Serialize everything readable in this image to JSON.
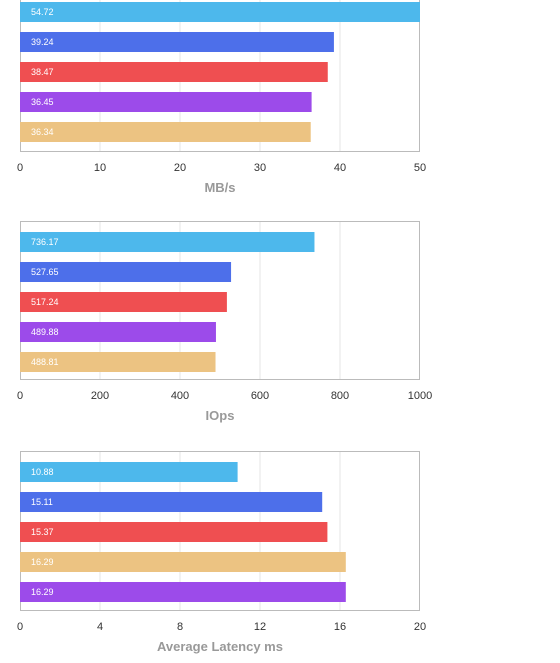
{
  "palette": {
    "sky": "#4DB8EC",
    "blue": "#4D6FEA",
    "red": "#EF4F51",
    "purple": "#9C4BEA",
    "tan": "#ECC382",
    "grid": "#E6E6E6",
    "frame": "#BBBBBB"
  },
  "chart_data": [
    {
      "type": "bar",
      "orientation": "horizontal",
      "xlabel": "MB/s",
      "xlim": [
        0,
        50
      ],
      "xticks": [
        0,
        10,
        20,
        30,
        40,
        50
      ],
      "grid": true,
      "values": [
        54.72,
        39.24,
        38.47,
        36.45,
        36.34
      ],
      "labels": [
        "54.72",
        "39.24",
        "38.47",
        "36.45",
        "36.34"
      ],
      "colors": [
        "#4DB8EC",
        "#4D6FEA",
        "#EF4F51",
        "#9C4BEA",
        "#ECC382"
      ]
    },
    {
      "type": "bar",
      "orientation": "horizontal",
      "xlabel": "IOps",
      "xlim": [
        0,
        1000
      ],
      "xticks": [
        0,
        200,
        400,
        600,
        800,
        1000
      ],
      "grid": true,
      "values": [
        736.17,
        527.65,
        517.24,
        489.88,
        488.81
      ],
      "labels": [
        "736.17",
        "527.65",
        "517.24",
        "489.88",
        "488.81"
      ],
      "colors": [
        "#4DB8EC",
        "#4D6FEA",
        "#EF4F51",
        "#9C4BEA",
        "#ECC382"
      ]
    },
    {
      "type": "bar",
      "orientation": "horizontal",
      "xlabel": "Average Latency ms",
      "xlim": [
        0,
        20
      ],
      "xticks": [
        0,
        4,
        8,
        12,
        16,
        20
      ],
      "grid": true,
      "values": [
        10.88,
        15.11,
        15.37,
        16.29,
        16.29
      ],
      "labels": [
        "10.88",
        "15.11",
        "15.37",
        "16.29",
        "16.29"
      ],
      "colors": [
        "#4DB8EC",
        "#4D6FEA",
        "#EF4F51",
        "#ECC382",
        "#9C4BEA"
      ]
    }
  ]
}
